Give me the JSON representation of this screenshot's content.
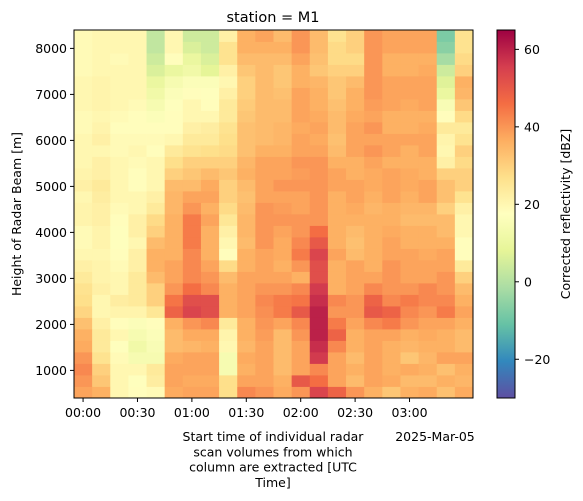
{
  "chart_data": {
    "type": "heatmap",
    "title": "station = M1",
    "ylabel": "Height of Radar Beam [m]",
    "xlabel_lines": [
      "Start time of individual radar",
      "scan volumes  from which",
      "column are extracted  [UTC",
      "Time]"
    ],
    "x_offset_label": "2025-Mar-05",
    "x_ticks": [
      "00:00",
      "00:30",
      "01:00",
      "01:30",
      "02:00",
      "02:30",
      "03:00"
    ],
    "y_ticks": [
      1000,
      2000,
      3000,
      4000,
      5000,
      6000,
      7000,
      8000
    ],
    "x_range_minutes": [
      -5,
      215
    ],
    "ylim": [
      400,
      8400
    ],
    "colorbar": {
      "label": "Corrected reflectivity [dBZ]",
      "range": [
        -30,
        65
      ],
      "ticks": [
        -20,
        0,
        20,
        40,
        60
      ],
      "colormap": "Spectral_r"
    },
    "time_columns_minutes": [
      -5,
      5,
      15,
      25,
      35,
      45,
      55,
      65,
      75,
      85,
      95,
      105,
      115,
      125,
      135,
      145,
      155,
      165,
      175,
      185,
      195,
      205
    ],
    "height_bins_m": [
      400,
      8400
    ],
    "values": [
      [
        38,
        36,
        20,
        18,
        19,
        37,
        38,
        38,
        27,
        42,
        40,
        37,
        40,
        54,
        48,
        40,
        36,
        32,
        36,
        37,
        33,
        37
      ],
      [
        40,
        32,
        20,
        17,
        23,
        38,
        37,
        37,
        27,
        38,
        38,
        36,
        50,
        46,
        38,
        34,
        38,
        37,
        34,
        34,
        36,
        35
      ],
      [
        42,
        30,
        20,
        20,
        24,
        38,
        38,
        38,
        14,
        36,
        38,
        34,
        38,
        42,
        38,
        36,
        38,
        36,
        37,
        36,
        33,
        36
      ],
      [
        40,
        26,
        19,
        14,
        14,
        37,
        38,
        38,
        14,
        37,
        38,
        34,
        38,
        56,
        38,
        34,
        38,
        36,
        32,
        35,
        38,
        38
      ],
      [
        37,
        24,
        17,
        12,
        15,
        34,
        35,
        36,
        20,
        35,
        38,
        34,
        38,
        58,
        42,
        36,
        38,
        36,
        35,
        36,
        36,
        34
      ],
      [
        36,
        24,
        20,
        14,
        16,
        34,
        37,
        37,
        21,
        36,
        39,
        34,
        40,
        60,
        48,
        36,
        38,
        38,
        36,
        37,
        36,
        34
      ],
      [
        33,
        22,
        18,
        16,
        18,
        36,
        40,
        42,
        24,
        36,
        40,
        38,
        42,
        60,
        44,
        38,
        42,
        44,
        40,
        38,
        38,
        36
      ],
      [
        29,
        20,
        21,
        21,
        25,
        48,
        54,
        52,
        36,
        38,
        41,
        44,
        50,
        60,
        40,
        40,
        50,
        48,
        42,
        40,
        44,
        38
      ],
      [
        27,
        20,
        23,
        24,
        30,
        45,
        52,
        52,
        36,
        38,
        42,
        44,
        45,
        58,
        42,
        40,
        48,
        42,
        44,
        42,
        42,
        36
      ],
      [
        26,
        22,
        20,
        24,
        30,
        40,
        46,
        42,
        36,
        38,
        40,
        40,
        42,
        56,
        36,
        38,
        42,
        40,
        40,
        42,
        40,
        34
      ],
      [
        24,
        21,
        20,
        24,
        34,
        38,
        42,
        40,
        34,
        38,
        38,
        38,
        36,
        52,
        36,
        38,
        38,
        40,
        38,
        38,
        40,
        30
      ],
      [
        22,
        21,
        19,
        22,
        36,
        38,
        42,
        38,
        28,
        36,
        38,
        36,
        40,
        52,
        36,
        38,
        36,
        40,
        38,
        38,
        38,
        24
      ],
      [
        20,
        20,
        18,
        22,
        36,
        36,
        42,
        36,
        18,
        36,
        38,
        37,
        44,
        54,
        38,
        34,
        36,
        38,
        38,
        37,
        38,
        18
      ],
      [
        19,
        21,
        17,
        20,
        34,
        36,
        44,
        36,
        20,
        34,
        40,
        37,
        42,
        50,
        36,
        33,
        36,
        38,
        36,
        36,
        36,
        18
      ],
      [
        19,
        21,
        17,
        22,
        30,
        36,
        44,
        36,
        22,
        35,
        40,
        38,
        40,
        46,
        36,
        34,
        36,
        37,
        36,
        36,
        34,
        20
      ],
      [
        21,
        22,
        18,
        22,
        28,
        36,
        44,
        38,
        25,
        35,
        40,
        40,
        40,
        40,
        36,
        36,
        36,
        36,
        34,
        34,
        34,
        20
      ],
      [
        21,
        22,
        19,
        20,
        24,
        35,
        40,
        36,
        28,
        34,
        40,
        39,
        38,
        40,
        36,
        37,
        35,
        36,
        35,
        35,
        30,
        22
      ],
      [
        20,
        23,
        20,
        20,
        22,
        35,
        38,
        38,
        30,
        33,
        38,
        38,
        38,
        40,
        36,
        38,
        36,
        38,
        36,
        38,
        33,
        26
      ],
      [
        22,
        24,
        20,
        18,
        20,
        34,
        34,
        37,
        30,
        34,
        38,
        40,
        40,
        40,
        38,
        38,
        37,
        38,
        37,
        38,
        33,
        30
      ],
      [
        21,
        22,
        20,
        18,
        20,
        30,
        32,
        34,
        32,
        36,
        38,
        38,
        39,
        40,
        38,
        36,
        37,
        38,
        37,
        36,
        30,
        30
      ],
      [
        20,
        22,
        20,
        19,
        20,
        27,
        30,
        30,
        30,
        35,
        38,
        38,
        40,
        40,
        36,
        36,
        38,
        36,
        36,
        36,
        22,
        28
      ],
      [
        20,
        20,
        19,
        20,
        18,
        24,
        26,
        27,
        28,
        33,
        36,
        36,
        38,
        38,
        34,
        38,
        40,
        38,
        36,
        38,
        20,
        30
      ],
      [
        20,
        22,
        19,
        19,
        19,
        20,
        24,
        24,
        27,
        33,
        34,
        35,
        38,
        37,
        33,
        38,
        38,
        38,
        38,
        38,
        21,
        26
      ],
      [
        19,
        21,
        18,
        18,
        18,
        18,
        22,
        23,
        26,
        33,
        34,
        35,
        37,
        38,
        34,
        38,
        40,
        36,
        36,
        37,
        24,
        24
      ],
      [
        19,
        20,
        19,
        18,
        16,
        18,
        20,
        20,
        24,
        32,
        34,
        34,
        38,
        37,
        34,
        37,
        38,
        36,
        36,
        36,
        18,
        28
      ],
      [
        20,
        21,
        20,
        19,
        14,
        17,
        20,
        18,
        24,
        31,
        34,
        34,
        38,
        36,
        33,
        36,
        39,
        38,
        37,
        38,
        15,
        32
      ],
      [
        20,
        21,
        20,
        20,
        12,
        16,
        18,
        17,
        22,
        30,
        34,
        33,
        38,
        36,
        32,
        36,
        40,
        38,
        38,
        38,
        10,
        35
      ],
      [
        20,
        21,
        20,
        20,
        10,
        14,
        16,
        16,
        20,
        30,
        34,
        32,
        36,
        35,
        32,
        34,
        40,
        38,
        38,
        38,
        7,
        36
      ],
      [
        19,
        20,
        20,
        20,
        6,
        10,
        12,
        8,
        22,
        32,
        34,
        32,
        36,
        32,
        30,
        30,
        40,
        36,
        36,
        37,
        4,
        30
      ],
      [
        19,
        20,
        19,
        20,
        4,
        18,
        10,
        6,
        26,
        34,
        34,
        34,
        38,
        33,
        28,
        28,
        40,
        36,
        36,
        36,
        -2,
        28
      ],
      [
        19,
        20,
        20,
        20,
        2,
        20,
        6,
        4,
        26,
        36,
        36,
        36,
        40,
        34,
        28,
        30,
        40,
        38,
        38,
        38,
        -6,
        26
      ],
      [
        19,
        20,
        20,
        20,
        2,
        20,
        4,
        4,
        22,
        36,
        38,
        34,
        40,
        34,
        26,
        30,
        40,
        38,
        38,
        38,
        -8,
        26
      ]
    ]
  }
}
